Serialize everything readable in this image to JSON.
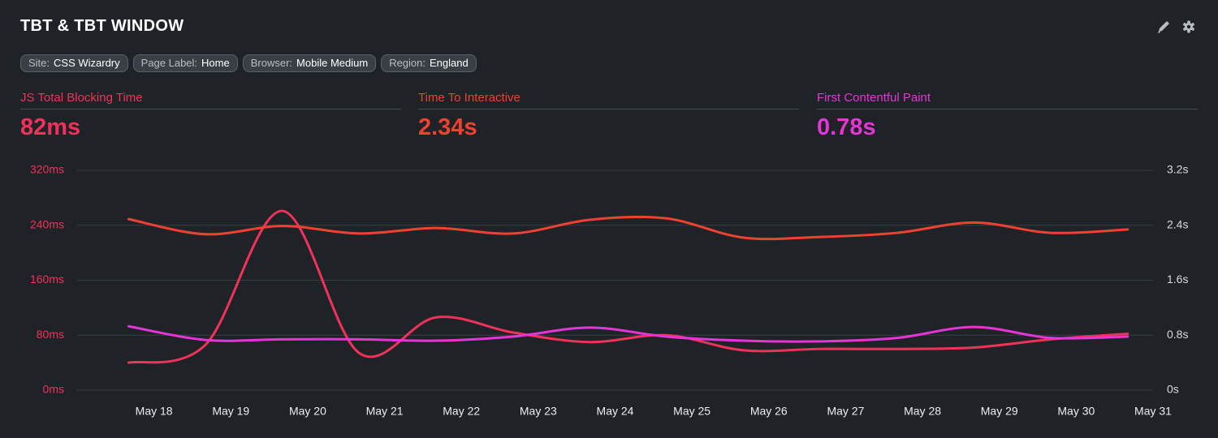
{
  "header": {
    "title": "TBT & TBT WINDOW",
    "filters": [
      {
        "key": "Site:",
        "value": "CSS Wizardry"
      },
      {
        "key": "Page Label:",
        "value": "Home"
      },
      {
        "key": "Browser:",
        "value": "Mobile Medium"
      },
      {
        "key": "Region:",
        "value": "England"
      }
    ]
  },
  "summary": [
    "82ms",
    "2.34s",
    "0.78s"
  ],
  "chart_data": {
    "type": "line",
    "x": [
      17.67,
      18.67,
      19.67,
      20.67,
      21.67,
      22.67,
      23.67,
      24.67,
      25.67,
      26.67,
      27.67,
      28.67,
      29.67,
      30.67
    ],
    "xlim": [
      17,
      31
    ],
    "xticks": [
      {
        "value": 18,
        "label": "May 18"
      },
      {
        "value": 19,
        "label": "May 19"
      },
      {
        "value": 20,
        "label": "May 20"
      },
      {
        "value": 21,
        "label": "May 21"
      },
      {
        "value": 22,
        "label": "May 22"
      },
      {
        "value": 23,
        "label": "May 23"
      },
      {
        "value": 24,
        "label": "May 24"
      },
      {
        "value": 25,
        "label": "May 25"
      },
      {
        "value": 26,
        "label": "May 26"
      },
      {
        "value": 27,
        "label": "May 27"
      },
      {
        "value": 28,
        "label": "May 28"
      },
      {
        "value": 29,
        "label": "May 29"
      },
      {
        "value": 30,
        "label": "May 30"
      },
      {
        "value": 31,
        "label": "May 31"
      }
    ],
    "ylim": [
      0,
      320
    ],
    "yticks": [
      {
        "value": 0,
        "label": "0ms"
      },
      {
        "value": 80,
        "label": "80ms"
      },
      {
        "value": 160,
        "label": "160ms"
      },
      {
        "value": 240,
        "label": "240ms"
      },
      {
        "value": 320,
        "label": "320ms"
      }
    ],
    "y2lim": [
      0,
      3.2
    ],
    "y2ticks": [
      {
        "value": 0,
        "label": "0s"
      },
      {
        "value": 0.8,
        "label": "0.8s"
      },
      {
        "value": 1.6,
        "label": "1.6s"
      },
      {
        "value": 2.4,
        "label": "2.4s"
      },
      {
        "value": 3.2,
        "label": "3.2s"
      }
    ],
    "grid": true,
    "series": [
      {
        "name": "JS Total Blocking Time",
        "color": "#f0325a",
        "values": [
          40,
          66,
          261,
          54,
          106,
          84,
          70,
          80,
          58,
          60,
          60,
          62,
          74,
          82
        ]
      },
      {
        "name": "Time To Interactive",
        "color": "#ee4130",
        "axis": "y2",
        "values": [
          2.49,
          2.27,
          2.39,
          2.28,
          2.36,
          2.28,
          2.48,
          2.5,
          2.22,
          2.23,
          2.29,
          2.44,
          2.29,
          2.34
        ]
      },
      {
        "name": "First Contentful Paint",
        "color": "#e535d6",
        "axis": "y2",
        "values": [
          0.93,
          0.73,
          0.74,
          0.74,
          0.72,
          0.78,
          0.91,
          0.78,
          0.72,
          0.71,
          0.76,
          0.92,
          0.76,
          0.78
        ]
      }
    ]
  }
}
